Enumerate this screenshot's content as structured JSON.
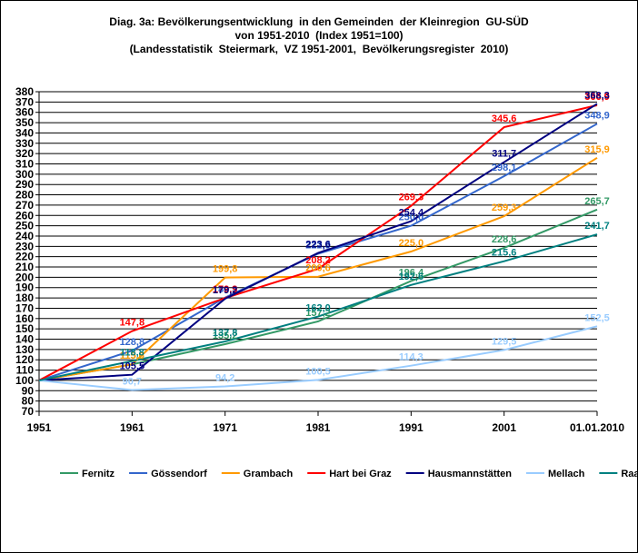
{
  "title_lines": [
    "Diag. 3a: Bevölkerungsentwicklung  in den Gemeinden  der Kleinregion  GU-SÜD",
    "von 1951-2010  (Index 1951=100)",
    "(Landesstatistik  Steiermark,  VZ 1951-2001,  Bevölkerungsregister  2010)"
  ],
  "chart_data": {
    "type": "line",
    "categories": [
      "1951",
      "1961",
      "1971",
      "1981",
      "1991",
      "2001",
      "01.01.2010"
    ],
    "ylim": [
      70,
      380
    ],
    "yticks": [
      70,
      80,
      90,
      100,
      110,
      120,
      130,
      140,
      150,
      160,
      170,
      180,
      190,
      200,
      210,
      220,
      230,
      240,
      250,
      260,
      270,
      280,
      290,
      300,
      310,
      320,
      330,
      340,
      350,
      360,
      370,
      380
    ],
    "grid": "horizontal",
    "legend": "bottom",
    "series": [
      {
        "name": "Fernitz",
        "color": "#339966",
        "values": [
          100,
          115.6,
          135.2,
          157.2,
          196.4,
          228.6,
          265.7
        ],
        "labels": [
          "",
          "115,6",
          "135,2",
          "157,2",
          "196,4",
          "228,6",
          "265,7"
        ]
      },
      {
        "name": "Gössendorf",
        "color": "#3366CC",
        "values": [
          100,
          128.8,
          180.3,
          222.9,
          250.0,
          298.1,
          348.9
        ],
        "labels": [
          "",
          "128,8",
          "180,3",
          "222,9",
          "250,0",
          "298,1",
          "348,9"
        ]
      },
      {
        "name": "Grambach",
        "color": "#FF9900",
        "values": [
          100,
          115.6,
          199.8,
          200.6,
          225.0,
          259.3,
          315.9
        ],
        "labels": [
          "",
          "115,6",
          "199,8",
          "200,6",
          "225,0",
          "259,3",
          "315,9"
        ]
      },
      {
        "name": "Hart bei Graz",
        "color": "#FF0000",
        "values": [
          100,
          147.8,
          179.9,
          208.2,
          269.3,
          345.6,
          366.9
        ],
        "labels": [
          "",
          "147,8",
          "179,9",
          "208,2",
          "269,3",
          "345,6",
          "366,9"
        ]
      },
      {
        "name": "Hausmannstätten",
        "color": "#000080",
        "values": [
          100,
          105.5,
          179.2,
          223.6,
          254.4,
          311.7,
          368.3
        ],
        "labels": [
          "",
          "105,5",
          "179,2",
          "223,6",
          "254,4",
          "311,7",
          "368,3"
        ]
      },
      {
        "name": "Mellach",
        "color": "#99CCFF",
        "values": [
          100,
          90.7,
          94.2,
          100.5,
          114.3,
          129.5,
          152.5
        ],
        "labels": [
          "",
          "90,7",
          "94,2",
          "100,5",
          "114,3",
          "129,5",
          "152,5"
        ]
      },
      {
        "name": "Raaba",
        "color": "#008080",
        "values": [
          100,
          118.8,
          137.8,
          162.0,
          192.6,
          215.6,
          241.7
        ],
        "labels": [
          "",
          "118,8",
          "137,8",
          "162,0",
          "192,6",
          "215,6",
          "241,7"
        ]
      }
    ]
  }
}
